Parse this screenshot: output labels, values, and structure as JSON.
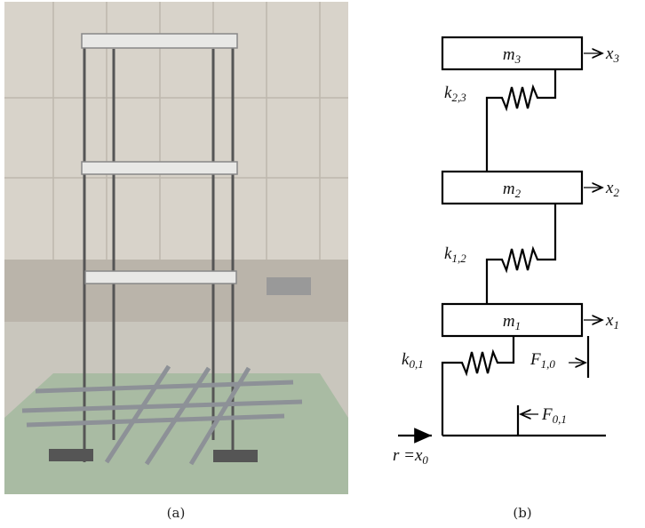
{
  "captions": [
    "(a)",
    "(b)"
  ],
  "diagram": {
    "masses": [
      {
        "symbol": "m",
        "subscript": "3"
      },
      {
        "symbol": "m",
        "subscript": "2"
      },
      {
        "symbol": "m",
        "subscript": "1"
      }
    ],
    "displacements": [
      {
        "symbol": "x",
        "subscript": "3"
      },
      {
        "symbol": "x",
        "subscript": "2"
      },
      {
        "symbol": "x",
        "subscript": "1"
      }
    ],
    "springs": [
      {
        "symbol": "k",
        "subscript": "2,3"
      },
      {
        "symbol": "k",
        "subscript": "1,2"
      },
      {
        "symbol": "k",
        "subscript": "0,1"
      }
    ],
    "forces": [
      {
        "symbol": "F",
        "subscript": "1,0"
      },
      {
        "symbol": "F",
        "subscript": "0,1"
      }
    ],
    "input": {
      "symbol": "r =x",
      "subscript": "0"
    }
  }
}
